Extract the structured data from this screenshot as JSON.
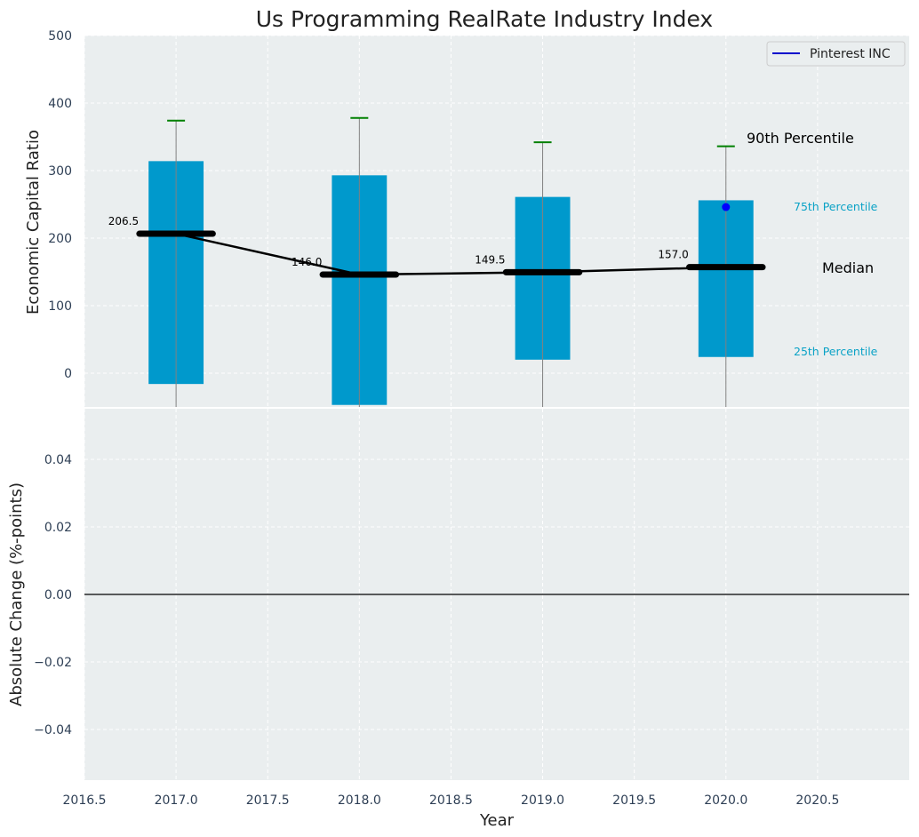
{
  "chart_data": {
    "type": "box",
    "title": "Us Programming RealRate Industry Index",
    "xlabel": "Year",
    "ylabel_top": "Economic Capital Ratio",
    "ylabel_bottom": "Absolute Change (%-points)",
    "xlim": [
      2016.5,
      2021.0
    ],
    "x_ticks": [
      "2016.5",
      "2017.0",
      "2017.5",
      "2018.0",
      "2018.5",
      "2019.0",
      "2019.5",
      "2020.0",
      "2020.5"
    ],
    "top_ylim": [
      -50,
      500
    ],
    "top_y_ticks": [
      "0",
      "100",
      "200",
      "300",
      "400",
      "500"
    ],
    "bottom_ylim": [
      -0.055,
      0.055
    ],
    "bottom_y_ticks": [
      "−0.04",
      "−0.02",
      "0.00",
      "0.02",
      "0.04"
    ],
    "grid": true,
    "legend_position": "top-right",
    "legend": [
      {
        "name": "Pinterest INC",
        "color": "#0000cc"
      }
    ],
    "boxes": [
      {
        "x": 2017.0,
        "p25": -16,
        "p75": 314,
        "median": 206.5,
        "whisker_low": -50,
        "whisker_high": 374,
        "median_label": "206.5"
      },
      {
        "x": 2018.0,
        "p25": -47,
        "p75": 293,
        "median": 146.0,
        "whisker_low": -50,
        "whisker_high": 378,
        "median_label": "146.0"
      },
      {
        "x": 2019.0,
        "p25": 20,
        "p75": 261,
        "median": 149.5,
        "whisker_low": -50,
        "whisker_high": 342,
        "median_label": "149.5"
      },
      {
        "x": 2020.0,
        "p25": 24,
        "p75": 256,
        "median": 157.0,
        "whisker_low": -50,
        "whisker_high": 336,
        "median_label": "157.0"
      }
    ],
    "series": [
      {
        "name": "Pinterest INC",
        "points": [
          {
            "x": 2020.0,
            "y": 246
          }
        ]
      }
    ],
    "bottom_series_values": [
      0.0
    ],
    "annotations": {
      "p90": "90th Percentile",
      "p75": "75th Percentile",
      "median": "Median",
      "p25": "25th Percentile"
    },
    "colors": {
      "box": "#0099cc",
      "median": "#000000",
      "whisker": "#808080",
      "cap": "#008000",
      "company_point": "#0000ff",
      "background": "#eaeeef",
      "annotation_small": "#0aa2c6"
    }
  }
}
